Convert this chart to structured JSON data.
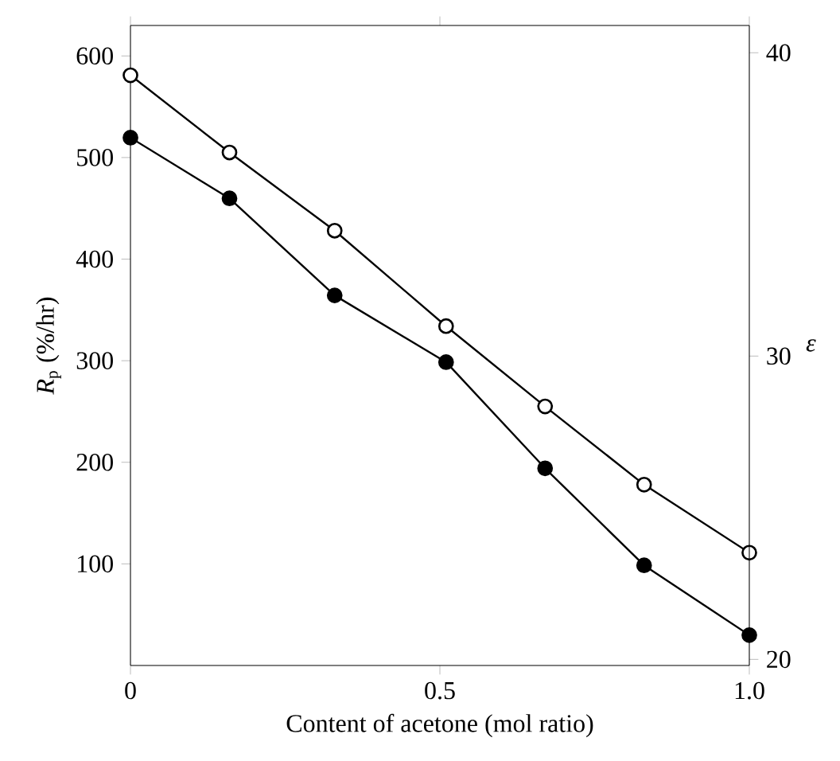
{
  "chart_data": {
    "type": "line",
    "xlabel": "Content of acetone (mol ratio)",
    "ylabel": "*R*$_{p}$ (%/hr)",
    "y2label": "ε",
    "xlim": [
      0,
      1
    ],
    "xticks": [
      0,
      0.5,
      {
        "value": 1,
        "label": "1.0"
      }
    ],
    "ylim": [
      0,
      630
    ],
    "yticks": [
      100,
      200,
      300,
      400,
      500,
      600
    ],
    "y2lim": [
      19.8,
      40.9
    ],
    "y2ticks": [
      20,
      30,
      40
    ],
    "marker": "circle",
    "line_style": "solid",
    "series": [
      {
        "color": "#000000",
        "x": [
          0,
          0.16,
          0.33,
          0.51,
          0.67,
          0.83,
          1.0
        ],
        "values": [
          581,
          505,
          428,
          334,
          255,
          178,
          111
        ]
      },
      {
        "color": "#000000",
        "axis": "y2",
        "x": [
          0,
          0.16,
          0.33,
          0.51,
          0.67,
          0.83,
          1.0
        ],
        "values": [
          37.2,
          35.2,
          32.0,
          29.8,
          26.3,
          23.1,
          20.8
        ]
      }
    ]
  }
}
